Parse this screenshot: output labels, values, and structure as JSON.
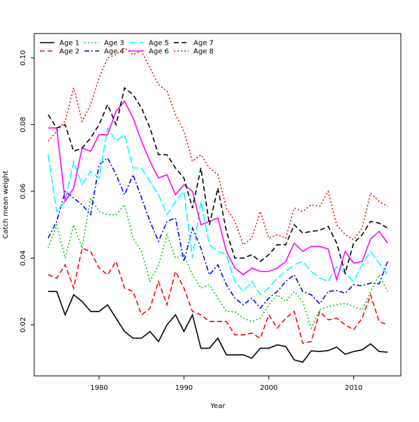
{
  "chart_data": {
    "type": "line",
    "title": "",
    "xlabel": "Year",
    "ylabel": "Catch mean weight",
    "xlim": [
      1972.35,
      2015.56
    ],
    "ylim": [
      0.0047,
      0.1073
    ],
    "xticks": [
      1980,
      1990,
      2000,
      2010
    ],
    "xtick_labels": [
      "1980",
      "1990",
      "2000",
      "2010"
    ],
    "yticks": [
      0.02,
      0.04,
      0.06,
      0.08,
      0.1
    ],
    "ytick_labels": [
      "0.02",
      "0.04",
      "0.06",
      "0.08",
      "0.10"
    ],
    "grid": false,
    "legend_position": "top-left",
    "x": [
      1974,
      1975,
      1976,
      1977,
      1978,
      1979,
      1980,
      1981,
      1982,
      1983,
      1984,
      1985,
      1986,
      1987,
      1988,
      1989,
      1990,
      1991,
      1992,
      1993,
      1994,
      1995,
      1996,
      1997,
      1998,
      1999,
      2000,
      2001,
      2002,
      2003,
      2004,
      2005,
      2006,
      2007,
      2008,
      2009,
      2010,
      2011,
      2012,
      2013,
      2014
    ],
    "series": [
      {
        "name": "Age 1",
        "color": "#000000",
        "dash": "solid",
        "values": [
          0.03,
          0.03,
          0.023,
          0.029,
          0.027,
          0.024,
          0.024,
          0.026,
          0.022,
          0.018,
          0.016,
          0.016,
          0.018,
          0.015,
          0.02,
          0.023,
          0.018,
          0.023,
          0.013,
          0.013,
          0.016,
          0.011,
          0.011,
          0.011,
          0.01,
          0.013,
          0.013,
          0.014,
          0.0135,
          0.0095,
          0.0088,
          0.0122,
          0.012,
          0.0123,
          0.0133,
          0.0112,
          0.012,
          0.0125,
          0.0143,
          0.012,
          0.0118
        ]
      },
      {
        "name": "Age 2",
        "color": "#ff0000",
        "dash": "dashed",
        "values": [
          0.035,
          0.034,
          0.038,
          0.031,
          0.043,
          0.042,
          0.037,
          0.035,
          0.039,
          0.031,
          0.03,
          0.023,
          0.025,
          0.033,
          0.026,
          0.036,
          0.031,
          0.024,
          0.023,
          0.021,
          0.021,
          0.021,
          0.017,
          0.017,
          0.0175,
          0.016,
          0.023,
          0.019,
          0.022,
          0.024,
          0.0145,
          0.015,
          0.024,
          0.0215,
          0.022,
          0.02,
          0.0185,
          0.022,
          0.029,
          0.021,
          0.02
        ]
      },
      {
        "name": "Age 3",
        "color": "#00cd00",
        "dash": "dotted",
        "values": [
          0.043,
          0.05,
          0.04,
          0.05,
          0.043,
          0.058,
          0.054,
          0.053,
          0.053,
          0.056,
          0.046,
          0.042,
          0.033,
          0.038,
          0.047,
          0.04,
          0.041,
          0.035,
          0.031,
          0.032,
          0.028,
          0.024,
          0.024,
          0.022,
          0.021,
          0.022,
          0.026,
          0.029,
          0.027,
          0.03,
          0.027,
          0.019,
          0.0245,
          0.0255,
          0.026,
          0.0265,
          0.0255,
          0.0245,
          0.03,
          0.035,
          0.03
        ]
      },
      {
        "name": "Age 4",
        "color": "#0000ff",
        "dash": "dashdot",
        "values": [
          0.046,
          0.051,
          0.06,
          0.058,
          0.056,
          0.053,
          0.068,
          0.07,
          0.065,
          0.059,
          0.065,
          0.058,
          0.051,
          0.045,
          0.051,
          0.052,
          0.039,
          0.049,
          0.043,
          0.035,
          0.038,
          0.032,
          0.028,
          0.026,
          0.028,
          0.025,
          0.028,
          0.03,
          0.033,
          0.035,
          0.03,
          0.029,
          0.0263,
          0.03,
          0.0303,
          0.0295,
          0.032,
          0.0317,
          0.0325,
          0.0323,
          0.039
        ]
      },
      {
        "name": "Age 5",
        "color": "#00ffff",
        "dash": "longdash",
        "values": [
          0.071,
          0.054,
          0.057,
          0.069,
          0.062,
          0.066,
          0.064,
          0.079,
          0.075,
          0.077,
          0.067,
          0.067,
          0.063,
          0.059,
          0.053,
          0.057,
          0.06,
          0.04,
          0.057,
          0.044,
          0.042,
          0.041,
          0.033,
          0.03,
          0.033,
          0.029,
          0.031,
          0.034,
          0.036,
          0.038,
          0.039,
          0.036,
          0.034,
          0.033,
          0.0375,
          0.0355,
          0.033,
          0.038,
          0.042,
          0.0385,
          0.035
        ]
      },
      {
        "name": "Age 6",
        "color": "#ff00ff",
        "dash": "solid",
        "values": [
          0.079,
          0.079,
          0.057,
          0.061,
          0.073,
          0.072,
          0.077,
          0.077,
          0.084,
          0.087,
          0.082,
          0.075,
          0.069,
          0.064,
          0.065,
          0.059,
          0.062,
          0.06,
          0.05,
          0.051,
          0.052,
          0.042,
          0.037,
          0.035,
          0.037,
          0.036,
          0.036,
          0.037,
          0.039,
          0.0445,
          0.042,
          0.0435,
          0.0435,
          0.0427,
          0.0335,
          0.042,
          0.0385,
          0.039,
          0.0457,
          0.048,
          0.0445
        ]
      },
      {
        "name": "Age 7",
        "color": "#000000",
        "dash": "dashed",
        "values": [
          0.083,
          0.079,
          0.08,
          0.072,
          0.073,
          0.076,
          0.08,
          0.086,
          0.08,
          0.091,
          0.089,
          0.085,
          0.079,
          0.071,
          0.071,
          0.067,
          0.064,
          0.055,
          0.067,
          0.05,
          0.061,
          0.048,
          0.04,
          0.04,
          0.041,
          0.039,
          0.041,
          0.044,
          0.044,
          0.05,
          0.0475,
          0.048,
          0.0483,
          0.0495,
          0.0445,
          0.0355,
          0.0445,
          0.047,
          0.051,
          0.0505,
          0.049
        ]
      },
      {
        "name": "Age 8",
        "color": "#ff0000",
        "dash": "dotted",
        "values": [
          0.075,
          0.078,
          0.081,
          0.091,
          0.081,
          0.086,
          0.094,
          0.1,
          0.101,
          0.103,
          0.101,
          0.102,
          0.097,
          0.092,
          0.09,
          0.083,
          0.078,
          0.069,
          0.071,
          0.067,
          0.065,
          0.055,
          0.051,
          0.044,
          0.046,
          0.054,
          0.046,
          0.047,
          0.046,
          0.055,
          0.054,
          0.056,
          0.0555,
          0.06,
          0.05,
          0.047,
          0.0455,
          0.049,
          0.0595,
          0.057,
          0.0555
        ]
      }
    ]
  }
}
